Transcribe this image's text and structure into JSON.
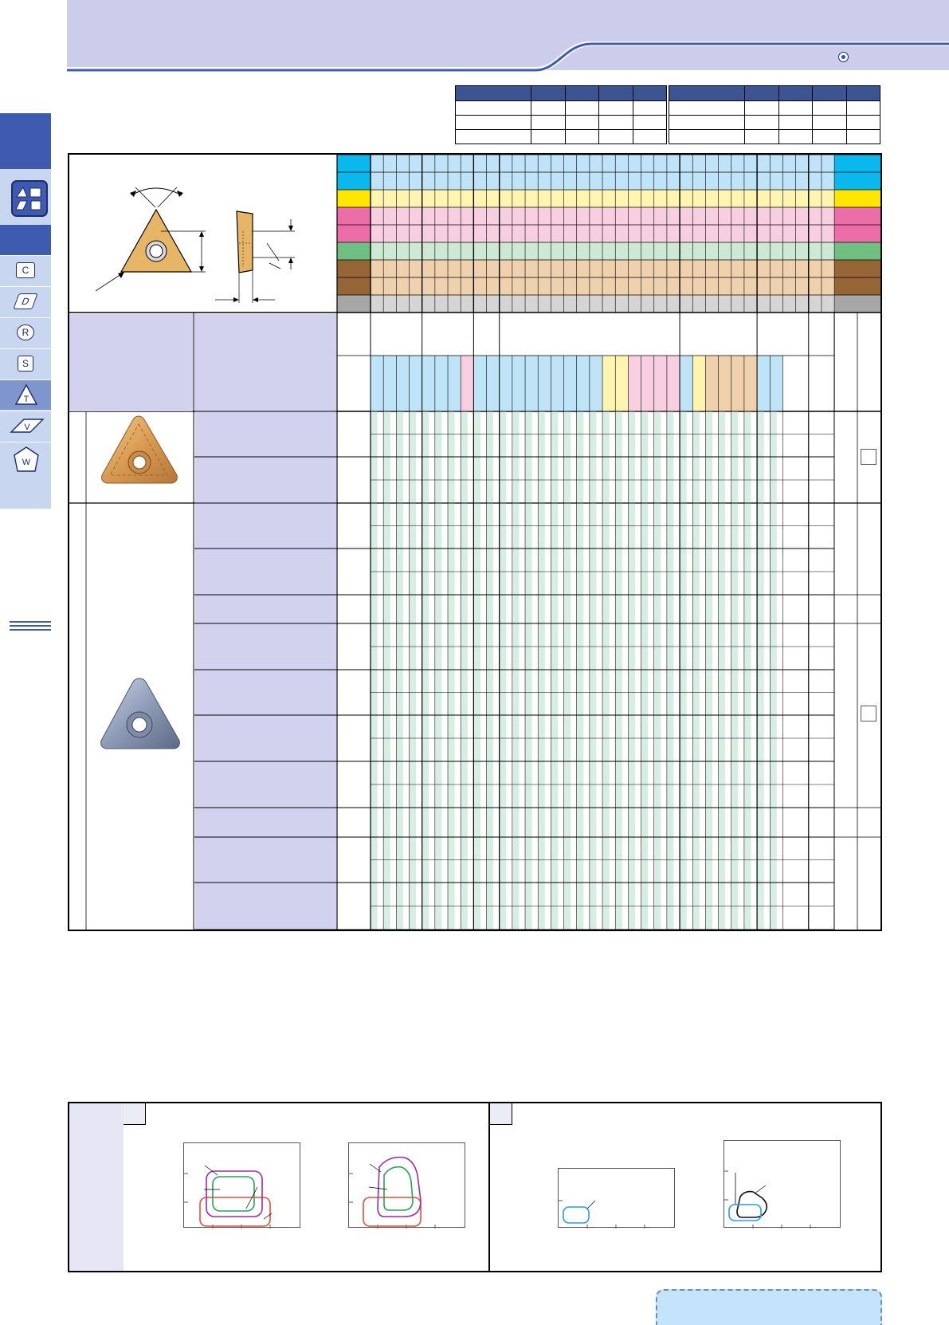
{
  "header": {
    "title": "",
    "nav_icon": "circle-arrow-icon"
  },
  "colors": {
    "header_band": "#cccdea",
    "accent_blue": "#3f5bb0",
    "steel_P": "#0ab8ee",
    "stainless_M": "#ffe500",
    "cast_iron_K": "#ec6ea8",
    "nonferrous_N": "#6fbf83",
    "superalloy_S": "#956535",
    "hard_H": "#a7a7a7",
    "grid_light_blue": "#bfe3f7",
    "grid_light_yellow": "#fff5b0",
    "grid_light_pink": "#f8cfe1",
    "grid_light_green": "#cde9d4",
    "grid_light_tan": "#efd1ad",
    "grid_light_gray": "#d5d5d5",
    "row_mint": "#d8ede4",
    "product_col": "#d3d2ee"
  },
  "sidebar": {
    "icons": [
      "insert-shapes-icon",
      "C",
      "D",
      "R",
      "S",
      "T",
      "V",
      "W"
    ],
    "active": "T"
  },
  "inserts": [
    {
      "name": "coated-insert",
      "color": "gold"
    },
    {
      "name": "cermet-insert",
      "color": "gray-blue"
    }
  ],
  "bottom_panels": [
    {
      "label": "",
      "charts": 2
    },
    {
      "label": "",
      "charts": 2
    }
  ],
  "note": ""
}
